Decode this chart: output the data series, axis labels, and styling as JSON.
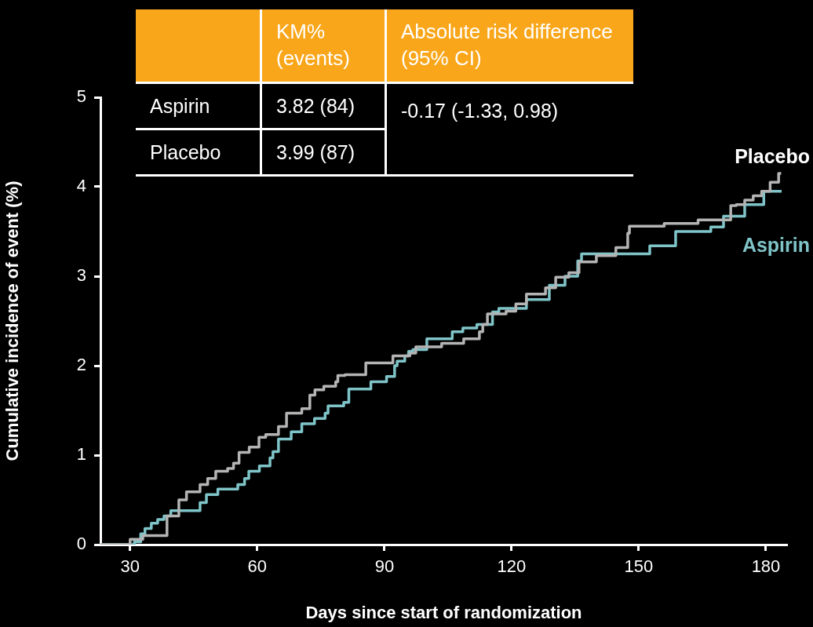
{
  "chart_data": {
    "type": "step",
    "xlabel": "Days since start of randomization",
    "ylabel": "Cumulative incidence of event (%)",
    "xlim": [
      23,
      185
    ],
    "xticks": [
      30,
      60,
      90,
      120,
      150,
      180
    ],
    "ylim": [
      0,
      5
    ],
    "yticks": [
      0,
      1,
      2,
      3,
      4,
      5
    ],
    "grid": false,
    "legend": false,
    "annotations": [
      "KM% (events)",
      "Absolute risk difference (95% CI)",
      "Aspirin",
      "3.82 (84)",
      "-0.17 (-1.33, 0.98)",
      "Placebo",
      "3.99 (87)"
    ],
    "series": [
      {
        "name": "Placebo",
        "color": "#b4b4b4",
        "x": [
          23,
          30,
          33,
          38.7,
          41.5,
          43.3,
          46.5,
          48.3,
          50.2,
          53,
          54.4,
          55.7,
          58.1,
          60.4,
          62,
          65,
          66.9,
          70.5,
          72.4,
          73.6,
          75.7,
          78.5,
          79,
          80.7,
          85.6,
          92,
          96,
          97.4,
          103.5,
          108.7,
          112.4,
          113.2,
          114.3,
          118.7,
          121,
          123.5,
          128,
          130.4,
          133.5,
          135.9,
          140,
          144.6,
          147.4,
          147.8,
          156,
          164,
          171.7,
          173,
          175,
          177,
          179,
          181,
          183,
          183.6
        ],
        "values": [
          0,
          0.06,
          0.1,
          0.32,
          0.5,
          0.59,
          0.67,
          0.74,
          0.82,
          0.85,
          0.91,
          1.03,
          1.09,
          1.2,
          1.23,
          1.32,
          1.47,
          1.52,
          1.67,
          1.73,
          1.77,
          1.82,
          1.89,
          1.9,
          2.03,
          2.11,
          2.14,
          2.21,
          2.25,
          2.3,
          2.38,
          2.46,
          2.58,
          2.61,
          2.69,
          2.8,
          2.87,
          2.99,
          3.04,
          3.16,
          3.23,
          3.32,
          3.48,
          3.56,
          3.59,
          3.63,
          3.79,
          3.8,
          3.85,
          3.9,
          3.95,
          4.05,
          4.15,
          4.15
        ]
      },
      {
        "name": "Aspirin",
        "color": "#7fc4c8",
        "x": [
          23,
          31,
          32.5,
          33.5,
          35,
          36.5,
          38,
          39.6,
          46.5,
          48,
          50.7,
          55.4,
          57,
          58,
          60.5,
          63,
          63.7,
          65,
          68,
          70.5,
          73.5,
          76,
          76.7,
          80.4,
          81.6,
          86.8,
          90.5,
          92.4,
          93,
          94.8,
          95.7,
          96.7,
          100,
          106,
          108.5,
          111.8,
          115.5,
          117,
          123.5,
          128.9,
          132.6,
          135.6,
          136.5,
          152.6,
          158.7,
          167,
          170,
          175,
          177,
          179.5,
          183.7
        ],
        "values": [
          0,
          0.03,
          0.12,
          0.18,
          0.24,
          0.28,
          0.32,
          0.38,
          0.47,
          0.56,
          0.62,
          0.67,
          0.74,
          0.82,
          0.88,
          0.97,
          1.04,
          1.18,
          1.26,
          1.35,
          1.41,
          1.47,
          1.55,
          1.59,
          1.74,
          1.82,
          1.88,
          2.0,
          2.05,
          2.11,
          2.16,
          2.18,
          2.3,
          2.38,
          2.42,
          2.46,
          2.6,
          2.64,
          2.74,
          2.9,
          3.0,
          3.17,
          3.25,
          3.34,
          3.5,
          3.55,
          3.67,
          3.8,
          3.8,
          3.95,
          3.95
        ]
      }
    ]
  }
}
